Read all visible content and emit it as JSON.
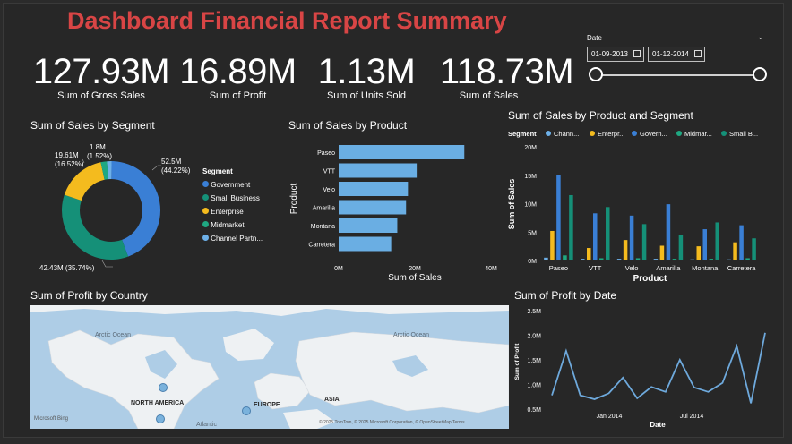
{
  "header": {
    "title": "Dashboard Financial Report Summary"
  },
  "kpis": [
    {
      "value": "127.93M",
      "label": "Sum of Gross Sales"
    },
    {
      "value": "16.89M",
      "label": "Sum of Profit"
    },
    {
      "value": "1.13M",
      "label": "Sum of Units Sold"
    },
    {
      "value": "118.73M",
      "label": "Sum of  Sales"
    }
  ],
  "date_slicer": {
    "label": "Date",
    "start": "01-09-2013",
    "end": "01-12-2014",
    "range_fraction": [
      0,
      1
    ]
  },
  "colors": {
    "government": "#3a7fd5",
    "small_business": "#159078",
    "enterprise": "#f4bb1e",
    "midmarket": "#1fa882",
    "channel_partners": "#6db0e8",
    "bar_blue": "#6aaee3",
    "line_blue": "#6ea9dc"
  },
  "chart_data": [
    {
      "type": "pie",
      "title": "Sum of Sales by Segment",
      "legend_title": "Segment",
      "slices": [
        {
          "name": "Government",
          "value": 52.5,
          "label": "52.5M",
          "pct": "(44.22%)"
        },
        {
          "name": "Small Business",
          "value": 42.43,
          "label": "42.43M (35.74%)",
          "pct": ""
        },
        {
          "name": "Enterprise",
          "value": 19.61,
          "label": "19.61M",
          "pct": "(16.52%)"
        },
        {
          "name": "Midmarket",
          "value": 2.4,
          "label": "",
          "pct": ""
        },
        {
          "name": "Channel Partn...",
          "value": 1.8,
          "label": "1.8M",
          "pct": "(1.52%)"
        }
      ]
    },
    {
      "type": "bar",
      "orientation": "horizontal",
      "title": "Sum of Sales by Product",
      "xlabel": "Sum of Sales",
      "ylabel": "Product",
      "categories": [
        "Paseo",
        "VTT",
        "Velo",
        "Amarilla",
        "Montana",
        "Carretera"
      ],
      "values": [
        33,
        20.5,
        18.2,
        17.7,
        15.4,
        13.8
      ],
      "xlim": [
        0,
        40
      ],
      "xticks": [
        "0M",
        "20M",
        "40M"
      ]
    },
    {
      "type": "bar",
      "title": "Sum of Sales by Product and Segment",
      "legend_title": "Segment",
      "xlabel": "Product",
      "ylabel": "Sum of Sales",
      "categories": [
        "Paseo",
        "VTT",
        "Velo",
        "Amarilla",
        "Montana",
        "Carretera"
      ],
      "ylim": [
        0,
        20
      ],
      "yticks": [
        "0M",
        "5M",
        "10M",
        "15M",
        "20M"
      ],
      "series": [
        {
          "name": "Chann...",
          "values": [
            0.5,
            0.3,
            0.3,
            0.3,
            0.2,
            0.2
          ]
        },
        {
          "name": "Enterpr...",
          "values": [
            5.2,
            2.2,
            3.6,
            2.6,
            2.5,
            3.2
          ]
        },
        {
          "name": "Govern...",
          "values": [
            15,
            8.3,
            7.9,
            9.9,
            5.5,
            6.2
          ]
        },
        {
          "name": "Midmar...",
          "values": [
            0.9,
            0.4,
            0.4,
            0.3,
            0.3,
            0.4
          ]
        },
        {
          "name": "Small B...",
          "values": [
            11.5,
            9.4,
            6.4,
            4.5,
            6.7,
            3.9
          ]
        }
      ]
    },
    {
      "type": "line",
      "title": "Sum of Profit by Date",
      "xlabel": "Date",
      "ylabel": "Sum of Profit",
      "ylim": [
        0.5,
        2.5
      ],
      "yticks": [
        "0.5M",
        "1.0M",
        "1.5M",
        "2.0M",
        "2.5M"
      ],
      "xticks": [
        "Jan 2014",
        "Jul 2014"
      ],
      "values": [
        0.78,
        1.68,
        0.78,
        0.7,
        0.82,
        1.14,
        0.72,
        0.95,
        0.85,
        1.5,
        0.94,
        0.85,
        1.03,
        1.78,
        0.62,
        2.05
      ]
    }
  ],
  "map": {
    "title": "Sum of Profit by Country",
    "labels": [
      "Arctic Ocean",
      "Arctic Ocean",
      "NORTH AMERICA",
      "EUROPE",
      "ASIA",
      "Atlantic"
    ],
    "attribution": "© 2025 TomTom, © 2025 Microsoft Corporation, © OpenStreetMap  Terms",
    "brand": "Microsoft Bing"
  }
}
